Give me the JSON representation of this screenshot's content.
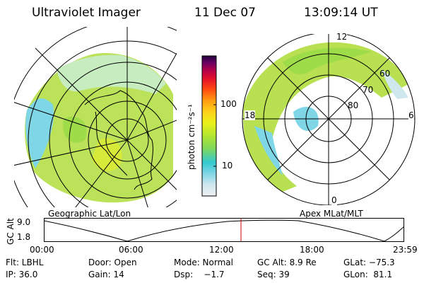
{
  "header": {
    "instrument": "Ultraviolet Imager",
    "date": "11 Dec 07",
    "time": "13:09:14 UT"
  },
  "panels": {
    "left_label": "Geographic Lat/Lon",
    "right_label": "Apex MLat/MLT",
    "right_grid": {
      "mlt_labels": [
        "12",
        "18",
        "6",
        "0"
      ],
      "mlat_labels": [
        "60",
        "70",
        "80"
      ]
    }
  },
  "colorbar": {
    "unit_label": "photon cm⁻²s⁻¹",
    "tick_labels": [
      "100",
      "10"
    ],
    "scale": "log",
    "colors": [
      "#f0f0f0",
      "#cfe8ee",
      "#7fd6e6",
      "#33c9cf",
      "#7fd85a",
      "#b8e62e",
      "#e9f01a",
      "#ffd21a",
      "#ff9c10",
      "#ff4a10",
      "#e0102a",
      "#b0004a",
      "#6c0062",
      "#200040"
    ]
  },
  "altitude_plot": {
    "y_label": "GC Alt",
    "y_ticks": [
      "9.0",
      "1.8"
    ],
    "x_ticks": [
      "00:00",
      "06:00",
      "12:00",
      "18:00",
      "23:59"
    ],
    "current_marker_time": "13:09",
    "marker_color": "#cc0000"
  },
  "status": {
    "row1": {
      "filter": "Flt: LBHL",
      "door": "Door: Open",
      "mode": "Mode: Normal",
      "gc_alt": "GC Alt: 8.9 Re",
      "glat": "GLat: −75.3"
    },
    "row2": {
      "ip": "IP: 36.0",
      "gain": "Gain: 14",
      "dsp": "Dsp:    −1.7",
      "seq": "Seq: 39",
      "glon": "GLon:  81.1"
    }
  }
}
